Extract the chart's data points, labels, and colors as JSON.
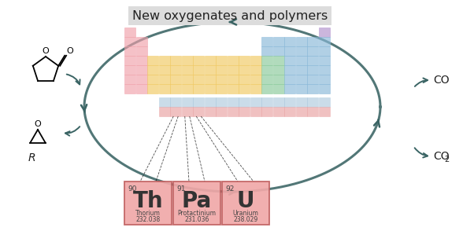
{
  "title": "New oxygenates and polymers",
  "title_fontsize": 11.5,
  "bg_color": "#ffffff",
  "title_bg": "#dcdcdc",
  "arrow_color": "#3a6464",
  "elements": [
    {
      "num": "90",
      "sym": "Th",
      "name": "Thorium",
      "mass": "232.038"
    },
    {
      "num": "91",
      "sym": "Pa",
      "name": "Protactinium",
      "mass": "231.036"
    },
    {
      "num": "92",
      "sym": "U",
      "name": "Uranium",
      "mass": "238.029"
    }
  ],
  "color_hex": {
    "pink": "#f0a0aa",
    "orange": "#f0c860",
    "green": "#88c898",
    "blue": "#88b8d8",
    "purple": "#b090cc",
    "lblue": "#a0c0d8",
    "lred": "#e8a0a0"
  },
  "co_text": "CO",
  "co2_text": "CO",
  "co2_sub": "2",
  "text_color": "#222222",
  "elem_bg": "#f0a8a8",
  "elem_border": "#c06060",
  "elem_dark": "#d07070"
}
